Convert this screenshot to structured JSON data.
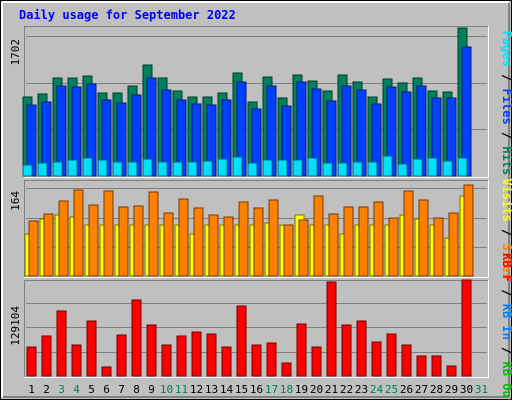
{
  "title": "Daily usage for September 2022",
  "colors": {
    "background": "#c0c0c0",
    "title": "#0000ff",
    "hits": "#00805c",
    "files": "#0040ff",
    "pages": "#00e0ff",
    "visits": "#ffff00",
    "sites": "#ff8000",
    "kbytes": "#ff0000",
    "kb_in": "#0080ff",
    "kb_out": "#00c000",
    "weekend": "#00805c",
    "weekday": "#000000"
  },
  "chart_data": [
    {
      "type": "bar",
      "categories": [
        "1",
        "2",
        "3",
        "4",
        "5",
        "6",
        "7",
        "8",
        "9",
        "10",
        "11",
        "12",
        "13",
        "14",
        "15",
        "16",
        "17",
        "18",
        "19",
        "20",
        "21",
        "22",
        "23",
        "24",
        "25",
        "26",
        "27",
        "28",
        "29",
        "30",
        "31"
      ],
      "weekend_days": [
        "3",
        "4",
        "10",
        "11",
        "17",
        "18",
        "24",
        "25",
        "31"
      ],
      "y_tick_label": "1702",
      "y_tick_value": 1702,
      "ylim": [
        0,
        1800
      ],
      "legend": [
        "Hits",
        "Files",
        "Pages"
      ],
      "series": [
        {
          "name": "Hits",
          "values": [
            962,
            994,
            1190,
            1186,
            1212,
            1010,
            1005,
            1093,
            1348,
            1194,
            1030,
            964,
            963,
            1009,
            1253,
            898,
            1202,
            944,
            1224,
            1159,
            1035,
            1224,
            1146,
            962,
            1179,
            1129,
            1186,
            1035,
            1019,
            1802,
            null
          ]
        },
        {
          "name": "Files",
          "values": [
            864,
            899,
            1095,
            1081,
            1116,
            925,
            888,
            986,
            1193,
            1046,
            927,
            870,
            863,
            922,
            1138,
            814,
            1100,
            850,
            1146,
            1060,
            918,
            1095,
            1045,
            878,
            1081,
            1016,
            1100,
            948,
            943,
            1569,
            null
          ]
        },
        {
          "name": "Pages",
          "values": [
            139,
            156,
            167,
            198,
            213,
            194,
            167,
            167,
            202,
            176,
            167,
            167,
            186,
            203,
            230,
            159,
            194,
            194,
            190,
            213,
            155,
            157,
            167,
            167,
            247,
            151,
            204,
            213,
            188,
            213,
            null
          ]
        }
      ]
    },
    {
      "type": "bar",
      "y_tick_label": "164",
      "y_tick_value": 164,
      "ylim": [
        0,
        176
      ],
      "legend": [
        "Visits",
        "Sites"
      ],
      "series": [
        {
          "name": "Visits",
          "values": [
            79,
            107,
            114,
            111,
            96,
            96,
            96,
            96,
            96,
            96,
            96,
            79,
            96,
            96,
            96,
            96,
            99,
            96,
            114,
            96,
            96,
            79,
            96,
            96,
            96,
            114,
            107,
            96,
            72,
            149,
            null
          ]
        },
        {
          "name": "Sites",
          "values": [
            103,
            117,
            141,
            161,
            133,
            159,
            129,
            131,
            158,
            118,
            145,
            128,
            114,
            110,
            138,
            127,
            142,
            96,
            105,
            149,
            117,
            129,
            129,
            138,
            109,
            159,
            143,
            108,
            118,
            170,
            null
          ]
        }
      ]
    },
    {
      "type": "bar",
      "y_tick_label": "129104",
      "y_tick_value": 129104,
      "ylim": [
        0,
        166000
      ],
      "legend": [
        "KB F",
        "KB In",
        "KB Out"
      ],
      "series": [
        {
          "name": "KB F",
          "values": [
            51500,
            71000,
            115000,
            54500,
            98000,
            16500,
            72000,
            135000,
            89500,
            54500,
            71500,
            78500,
            74500,
            51000,
            124000,
            54500,
            57500,
            23500,
            91000,
            51000,
            166000,
            89500,
            97500,
            60000,
            73500,
            54500,
            35000,
            35000,
            18000,
            169000,
            null
          ]
        }
      ]
    }
  ]
}
